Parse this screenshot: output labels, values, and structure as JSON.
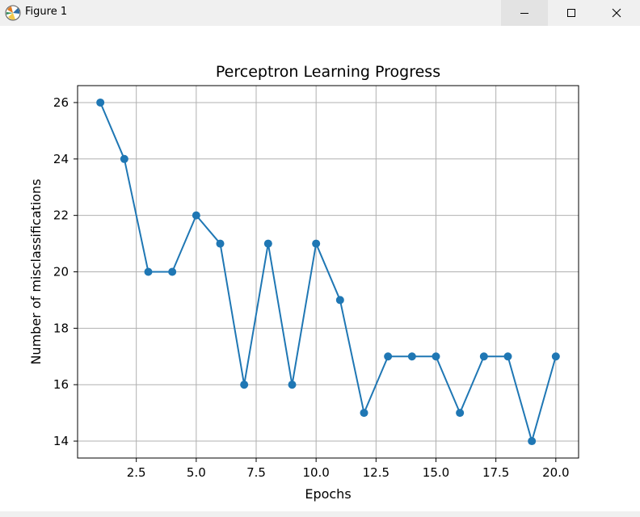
{
  "window": {
    "title": "Figure 1",
    "icons": {
      "app": "matplotlib-icon",
      "minimize": "minimize-icon",
      "maximize": "maximize-icon",
      "close": "close-icon"
    }
  },
  "chart_data": {
    "type": "line",
    "title": "Perceptron Learning Progress",
    "xlabel": "Epochs",
    "ylabel": "Number of misclassifications",
    "x": [
      1,
      2,
      3,
      4,
      5,
      6,
      7,
      8,
      9,
      10,
      11,
      12,
      13,
      14,
      15,
      16,
      17,
      18,
      19,
      20
    ],
    "series": [
      {
        "values": [
          26,
          24,
          20,
          20,
          22,
          21,
          16,
          21,
          16,
          21,
          19,
          15,
          17,
          17,
          17,
          15,
          17,
          17,
          14,
          17
        ]
      }
    ],
    "xticks": [
      2.5,
      5.0,
      7.5,
      10.0,
      12.5,
      15.0,
      17.5,
      20.0
    ],
    "xtick_labels": [
      "2.5",
      "5.0",
      "7.5",
      "10.0",
      "12.5",
      "15.0",
      "17.5",
      "20.0"
    ],
    "yticks": [
      14,
      16,
      18,
      20,
      22,
      24,
      26
    ],
    "ytick_labels": [
      "14",
      "16",
      "18",
      "20",
      "22",
      "24",
      "26"
    ],
    "xlim": [
      0.05,
      20.95
    ],
    "ylim": [
      13.4,
      26.6
    ],
    "grid": true,
    "marker": "circle",
    "colors": {
      "line": "#1f77b4",
      "grid": "#b0b0b0"
    }
  }
}
